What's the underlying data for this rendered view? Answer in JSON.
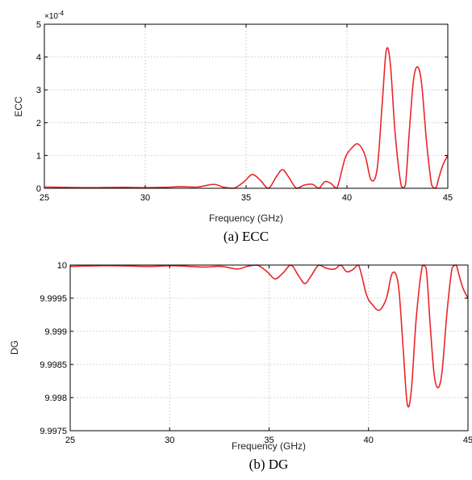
{
  "chart_data": [
    {
      "type": "line",
      "caption": "(a) ECC",
      "xlabel": "Frequency (GHz)",
      "ylabel": "ECC",
      "y_multiplier_label": "×10",
      "y_multiplier_exponent": "-4",
      "xlim": [
        25,
        45
      ],
      "ylim": [
        0,
        5
      ],
      "xticks": [
        "25",
        "30",
        "35",
        "40",
        "45"
      ],
      "yticks": [
        "0",
        "1",
        "2",
        "3",
        "4",
        "5"
      ],
      "grid": true,
      "series_color": "#e8262a",
      "series": [
        {
          "x": [
            25,
            27,
            29,
            30,
            31,
            31.8,
            32.6,
            33.4,
            33.9,
            34.4,
            34.9,
            35.3,
            35.7,
            36.1,
            36.5,
            36.8,
            37.1,
            37.5,
            37.9,
            38.3,
            38.6,
            38.9,
            39.2,
            39.5,
            39.9,
            40.2,
            40.55,
            40.9,
            41.2,
            41.5,
            41.75,
            41.95,
            42.15,
            42.4,
            42.7,
            42.9,
            43.1,
            43.3,
            43.5,
            43.7,
            43.95,
            44.2,
            44.4,
            44.55,
            44.75,
            45
          ],
          "y": [
            0.04,
            0.02,
            0.03,
            0.02,
            0.03,
            0.05,
            0.04,
            0.12,
            0.03,
            0.0,
            0.2,
            0.42,
            0.25,
            0.0,
            0.35,
            0.57,
            0.35,
            0.0,
            0.1,
            0.12,
            0.0,
            0.2,
            0.15,
            0.0,
            0.9,
            1.2,
            1.35,
            1.0,
            0.25,
            0.6,
            2.6,
            4.2,
            3.8,
            1.6,
            0.05,
            0.1,
            1.8,
            3.3,
            3.7,
            3.2,
            1.4,
            0.1,
            0.0,
            0.3,
            0.7,
            1.0
          ]
        }
      ]
    },
    {
      "type": "line",
      "caption": "(b) DG",
      "xlabel": "Frequency (GHz)",
      "ylabel": "DG",
      "xlim": [
        25,
        45
      ],
      "ylim": [
        9.9975,
        10
      ],
      "xticks": [
        "25",
        "30",
        "35",
        "40",
        "45"
      ],
      "yticks": [
        "9.9975",
        "9.998",
        "9.9985",
        "9.999",
        "9.9995",
        "10"
      ],
      "grid": true,
      "series_color": "#e8262a",
      "series": [
        {
          "x": [
            25,
            27,
            29,
            30,
            31,
            31.8,
            32.6,
            33.4,
            33.9,
            34.4,
            34.9,
            35.3,
            35.7,
            36.1,
            36.5,
            36.8,
            37.1,
            37.5,
            37.9,
            38.3,
            38.6,
            38.9,
            39.2,
            39.5,
            39.9,
            40.2,
            40.55,
            40.9,
            41.2,
            41.5,
            41.75,
            41.95,
            42.15,
            42.4,
            42.7,
            42.9,
            43.1,
            43.3,
            43.5,
            43.7,
            43.95,
            44.2,
            44.4,
            44.55,
            44.75,
            45
          ],
          "y": [
            9.99998,
            9.99999,
            9.99998,
            9.99999,
            9.99998,
            9.99997,
            9.99998,
            9.99994,
            9.99998,
            10.0,
            9.9999,
            9.99979,
            9.99988,
            10.0,
            9.99983,
            9.99972,
            9.99983,
            10.0,
            9.99995,
            9.99994,
            10.0,
            9.9999,
            9.99993,
            10.0,
            9.99955,
            9.9994,
            9.99932,
            9.9995,
            9.99988,
            9.9997,
            9.9987,
            9.9979,
            9.9981,
            9.9992,
            9.99998,
            9.99995,
            9.9991,
            9.99835,
            9.99815,
            9.9984,
            9.9993,
            9.99995,
            10.0,
            9.99985,
            9.99965,
            9.9995
          ]
        }
      ]
    }
  ]
}
